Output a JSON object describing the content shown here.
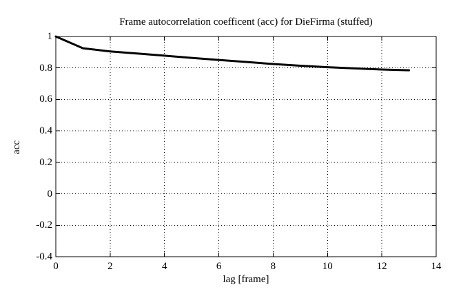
{
  "colors": {
    "background": "#ffffff",
    "foreground": "#000000"
  },
  "chart_data": {
    "type": "line",
    "title": "Frame autocorrelation coefficent (acc) for DieFirma (stuffed)",
    "xlabel": "lag [frame]",
    "ylabel": "acc",
    "xlim": [
      0,
      14
    ],
    "ylim": [
      -0.4,
      1
    ],
    "grid": true,
    "grid_style": "dotted",
    "legend": "none",
    "line_color": "#000000",
    "line_width": 3,
    "xticks": [
      {
        "label": "0",
        "value": 0
      },
      {
        "label": "2",
        "value": 2
      },
      {
        "label": "4",
        "value": 4
      },
      {
        "label": "6",
        "value": 6
      },
      {
        "label": "8",
        "value": 8
      },
      {
        "label": "10",
        "value": 10
      },
      {
        "label": "12",
        "value": 12
      },
      {
        "label": "14",
        "value": 14
      }
    ],
    "yticks": [
      {
        "label": "1",
        "value": 1
      },
      {
        "label": "0.8",
        "value": 0.8
      },
      {
        "label": "0.6",
        "value": 0.6
      },
      {
        "label": "0.4",
        "value": 0.4
      },
      {
        "label": "0.2",
        "value": 0.2
      },
      {
        "label": "0",
        "value": 0
      },
      {
        "label": "-0.2",
        "value": -0.2
      },
      {
        "label": "-0.4",
        "value": -0.4
      }
    ],
    "series": [
      {
        "name": "acc",
        "x": [
          0,
          1,
          2,
          3,
          4,
          5,
          6,
          7,
          8,
          9,
          10,
          11,
          12,
          13
        ],
        "y": [
          1.0,
          0.925,
          0.905,
          0.892,
          0.878,
          0.864,
          0.851,
          0.838,
          0.825,
          0.814,
          0.805,
          0.797,
          0.79,
          0.785
        ]
      }
    ]
  }
}
